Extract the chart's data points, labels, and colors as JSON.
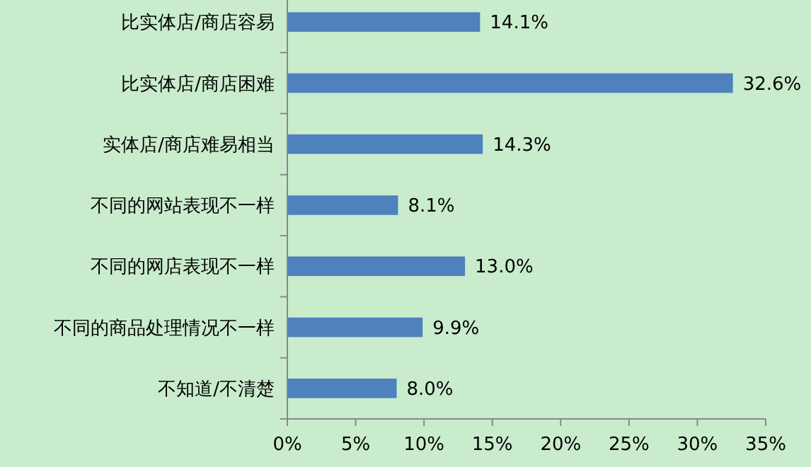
{
  "chart_data": {
    "type": "bar",
    "orientation": "horizontal",
    "categories": [
      "比实体店/商店容易",
      "比实体店/商店困难",
      "实体店/商店难易相当",
      "不同的网站表现不一样",
      "不同的网店表现不一样",
      "不同的商品处理情况不一样",
      "不知道/不清楚"
    ],
    "values": [
      14.1,
      32.6,
      14.3,
      8.1,
      13.0,
      9.9,
      8.0
    ],
    "value_labels": [
      "14.1%",
      "32.6%",
      "14.3%",
      "8.1%",
      "13.0%",
      "9.9%",
      "8.0%"
    ],
    "color": "#4f81bd",
    "xlim": [
      0,
      35
    ],
    "xticks": [
      {
        "value": 0,
        "label": "0%"
      },
      {
        "value": 5,
        "label": "5%"
      },
      {
        "value": 10,
        "label": "10%"
      },
      {
        "value": 15,
        "label": "15%"
      },
      {
        "value": 20,
        "label": "20%"
      },
      {
        "value": 25,
        "label": "25%"
      },
      {
        "value": 30,
        "label": "30%"
      },
      {
        "value": 35,
        "label": "35%"
      }
    ],
    "grid": false
  }
}
